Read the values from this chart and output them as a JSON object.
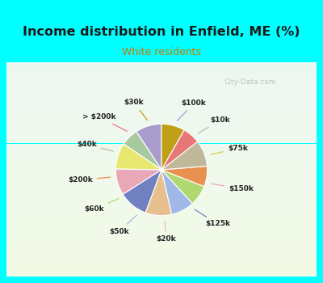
{
  "title": "Income distribution in Enfield, ME (%)",
  "subtitle": "White residents",
  "title_color": "#1a1a1a",
  "subtitle_color": "#cc7700",
  "cyan_border": "#00ffff",
  "inner_bg_top": "#e8f5f0",
  "inner_bg_bottom": "#d0f0e0",
  "labels": [
    "$100k",
    "$10k",
    "$75k",
    "$150k",
    "$125k",
    "$20k",
    "$50k",
    "$60k",
    "$200k",
    "$40k",
    "> $200k",
    "$30k"
  ],
  "values": [
    9,
    6,
    9,
    9,
    10,
    9,
    8,
    7,
    7,
    9,
    6,
    8
  ],
  "colors": [
    "#a89ccc",
    "#a8c8a0",
    "#e8e870",
    "#e8a8b8",
    "#7080c0",
    "#e8c090",
    "#a0b8e8",
    "#b0d870",
    "#e89050",
    "#c0b898",
    "#e87878",
    "#c0a018"
  ],
  "label_colors": [
    "#a89ccc",
    "#a8c8a0",
    "#d0d060",
    "#e8a8b8",
    "#7080c0",
    "#e8c090",
    "#a0b8e8",
    "#b0d870",
    "#e89050",
    "#c0b898",
    "#e87878",
    "#c0a018"
  ],
  "watermark": "City-Data.com"
}
